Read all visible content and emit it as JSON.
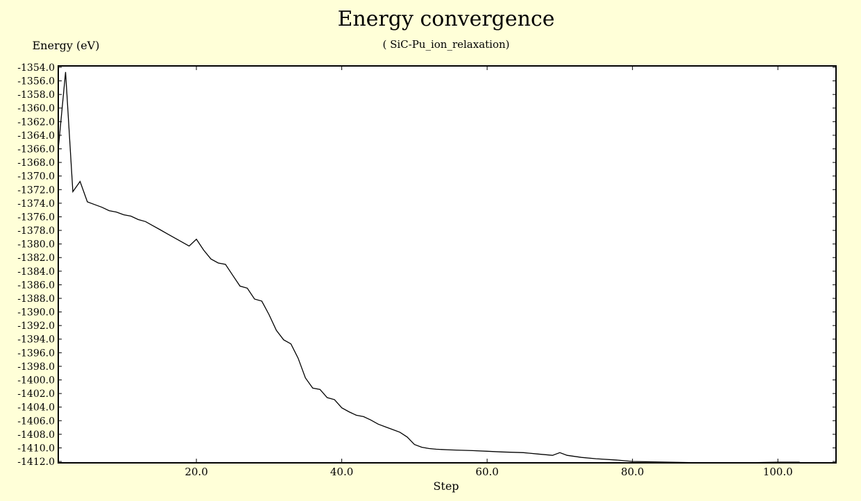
{
  "chart_data": {
    "type": "line",
    "title": "Energy convergence",
    "subtitle": "( SiC-Pu_ion_relaxation)",
    "xlabel": "Step",
    "ylabel": "Energy (eV)",
    "xlim": [
      1,
      108
    ],
    "ylim": [
      -1412.2,
      -1353.8
    ],
    "xticks": [
      20,
      40,
      60,
      80,
      100
    ],
    "xtick_labels": [
      "20.0",
      "40.0",
      "60.0",
      "80.0",
      "100.0"
    ],
    "yticks": [
      -1354,
      -1356,
      -1358,
      -1360,
      -1362,
      -1364,
      -1366,
      -1368,
      -1370,
      -1372,
      -1374,
      -1376,
      -1378,
      -1380,
      -1382,
      -1384,
      -1386,
      -1388,
      -1390,
      -1392,
      -1394,
      -1396,
      -1398,
      -1400,
      -1402,
      -1404,
      -1406,
      -1408,
      -1410,
      -1412
    ],
    "ytick_labels": [
      "-1354.0",
      "-1356.0",
      "-1358.0",
      "-1360.0",
      "-1362.0",
      "-1364.0",
      "-1366.0",
      "-1368.0",
      "-1370.0",
      "-1372.0",
      "-1374.0",
      "-1376.0",
      "-1378.0",
      "-1380.0",
      "-1382.0",
      "-1384.0",
      "-1386.0",
      "-1388.0",
      "-1390.0",
      "-1392.0",
      "-1394.0",
      "-1396.0",
      "-1398.0",
      "-1400.0",
      "-1402.0",
      "-1404.0",
      "-1406.0",
      "-1408.0",
      "-1410.0",
      "-1412.0"
    ],
    "grid": false,
    "series": [
      {
        "x": [
          1,
          2,
          3,
          4,
          5,
          6,
          7,
          8,
          9,
          10,
          11,
          12,
          13,
          14,
          15,
          16,
          17,
          18,
          19,
          20,
          21,
          22,
          23,
          24,
          25,
          26,
          27,
          28,
          29,
          30,
          31,
          32,
          33,
          34,
          35,
          36,
          37,
          38,
          39,
          40,
          41,
          42,
          43,
          44,
          45,
          46,
          47,
          48,
          49,
          50,
          51,
          52,
          53,
          55,
          58,
          60,
          62,
          65,
          67,
          69,
          70,
          71,
          73,
          75,
          78,
          80,
          85,
          90,
          95,
          100,
          103
        ],
        "y": [
          -1366.0,
          -1354.7,
          -1372.3,
          -1370.8,
          -1373.8,
          -1374.2,
          -1374.6,
          -1375.1,
          -1375.3,
          -1375.7,
          -1375.9,
          -1376.4,
          -1376.7,
          -1377.3,
          -1377.9,
          -1378.5,
          -1379.1,
          -1379.7,
          -1380.3,
          -1379.3,
          -1380.9,
          -1382.2,
          -1382.8,
          -1383.0,
          -1384.6,
          -1386.2,
          -1386.5,
          -1388.1,
          -1388.4,
          -1390.4,
          -1392.7,
          -1394.1,
          -1394.7,
          -1396.8,
          -1399.7,
          -1401.2,
          -1401.4,
          -1402.6,
          -1402.9,
          -1404.1,
          -1404.7,
          -1405.2,
          -1405.4,
          -1405.9,
          -1406.5,
          -1406.9,
          -1407.3,
          -1407.7,
          -1408.4,
          -1409.5,
          -1409.9,
          -1410.1,
          -1410.2,
          -1410.3,
          -1410.4,
          -1410.5,
          -1410.6,
          -1410.7,
          -1410.9,
          -1411.1,
          -1410.7,
          -1411.1,
          -1411.4,
          -1411.6,
          -1411.8,
          -1412.0,
          -1412.1,
          -1412.2,
          -1412.2,
          -1412.1,
          -1412.1
        ]
      }
    ]
  }
}
